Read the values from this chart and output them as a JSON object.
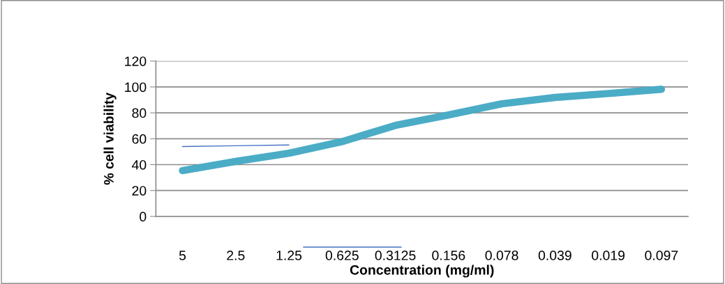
{
  "chart_data": {
    "type": "line",
    "xlabel": "Concentration (mg/ml)",
    "ylabel": "% cell viability",
    "categories": [
      "5",
      "2.5",
      "1.25",
      "0.625",
      "0.3125",
      "0.156",
      "0.078",
      "0.039",
      "0.019",
      "0.097"
    ],
    "series": [
      {
        "color": "#4bacc6",
        "values": [
          35.4,
          42.5,
          48.8,
          57.8,
          70.3,
          78.4,
          87,
          91.9,
          94.9,
          98.2
        ]
      },
      {
        "color": "#4472c4",
        "values": [
          54,
          54.6,
          55.2,
          null,
          null,
          null,
          null,
          null,
          null,
          null
        ]
      }
    ],
    "ylim": [
      0,
      120
    ],
    "yticks": [
      0,
      20,
      40,
      60,
      80,
      100,
      120
    ],
    "grid": "y",
    "marker": "none",
    "line_style": "solid"
  }
}
